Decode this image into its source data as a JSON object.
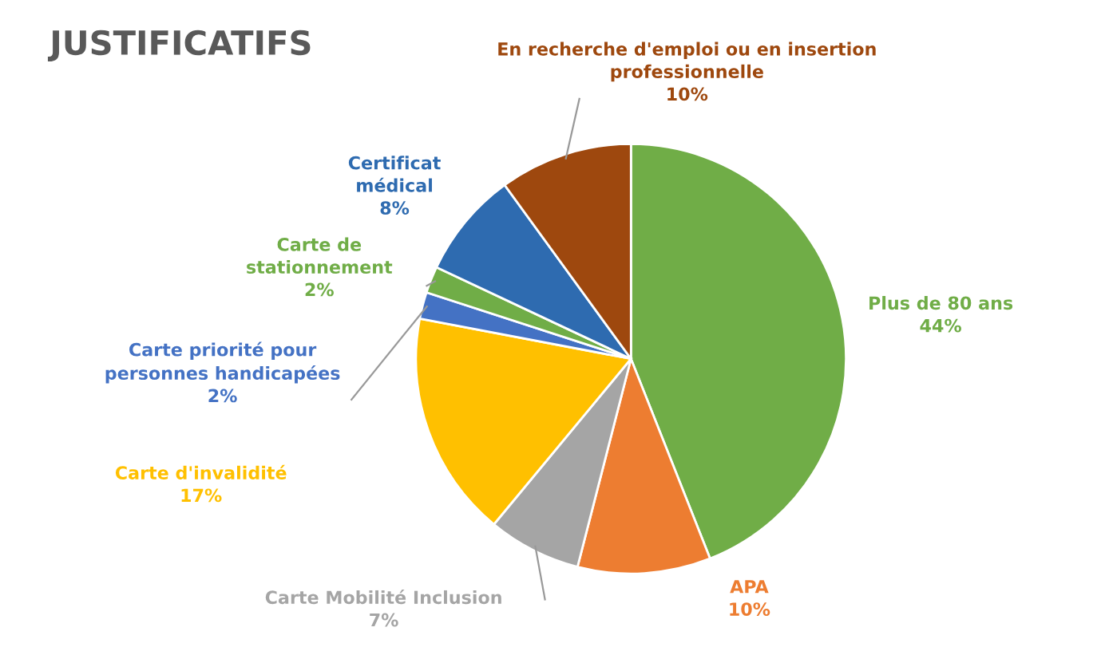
{
  "chart_data": {
    "type": "pie",
    "title": "JUSTIFICATIFS",
    "categories": [
      "Plus de 80 ans",
      "APA",
      "Carte Mobilité Inclusion",
      "Carte d'invalidité",
      "Carte priorité pour\npersonnes handicapées",
      "Carte de\nstationnement",
      "Certificat\nmédical",
      "En recherche d'emploi ou en insertion\nprofessionnelle"
    ],
    "values": [
      44,
      10,
      7,
      17,
      2,
      2,
      8,
      10
    ],
    "value_labels": [
      "44%",
      "10%",
      "7%",
      "17%",
      "2%",
      "2%",
      "8%",
      "10%"
    ],
    "colors": [
      "#70ad47",
      "#ed7d31",
      "#a5a5a5",
      "#ffc000",
      "#4472c4",
      "#70ad47",
      "#2e6bb0",
      "#9e480e"
    ]
  }
}
